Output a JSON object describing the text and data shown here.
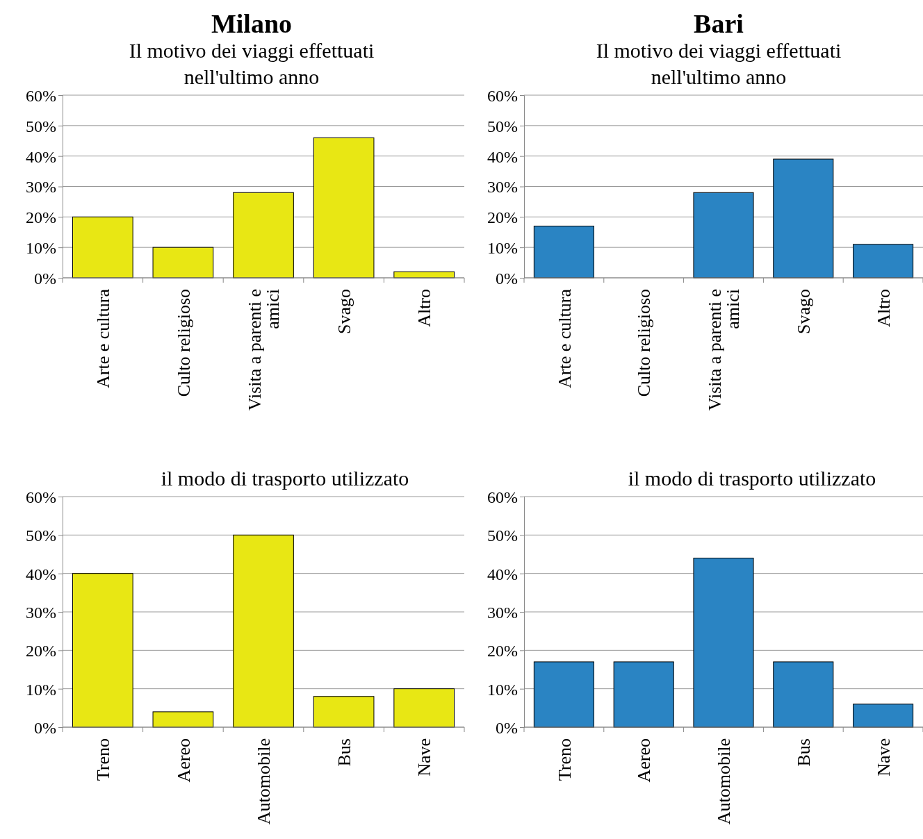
{
  "chart_data": [
    {
      "type": "bar",
      "title": "Milano",
      "subtitle": "Il motivo dei viaggi effettuati nell'ultimo anno",
      "categories": [
        "Arte e cultura",
        "Culto religioso",
        "Visita a parenti e amici",
        "Svago",
        "Altro"
      ],
      "values": [
        20,
        10,
        28,
        46,
        2
      ],
      "color": "#e8e714",
      "ylim": [
        0,
        60
      ],
      "yticks": [
        {
          "value": 0,
          "label": "0%"
        },
        {
          "value": 10,
          "label": "10%"
        },
        {
          "value": 20,
          "label": "20%"
        },
        {
          "value": 30,
          "label": "30%"
        },
        {
          "value": 40,
          "label": "40%"
        },
        {
          "value": 50,
          "label": "50%"
        },
        {
          "value": 60,
          "label": "60%"
        }
      ],
      "grid": "y"
    },
    {
      "type": "bar",
      "title": "Bari",
      "subtitle": "Il motivo dei viaggi effettuati nell'ultimo anno",
      "categories": [
        "Arte e cultura",
        "Culto religioso",
        "Visita a parenti e amici",
        "Svago",
        "Altro"
      ],
      "values": [
        17,
        0,
        28,
        39,
        11
      ],
      "color": "#2a84c3",
      "ylim": [
        0,
        60
      ],
      "yticks": [
        {
          "value": 0,
          "label": "0%"
        },
        {
          "value": 10,
          "label": "10%"
        },
        {
          "value": 20,
          "label": "20%"
        },
        {
          "value": 30,
          "label": "30%"
        },
        {
          "value": 40,
          "label": "40%"
        },
        {
          "value": 50,
          "label": "50%"
        },
        {
          "value": 60,
          "label": "60%"
        }
      ],
      "grid": "y"
    },
    {
      "type": "bar",
      "subtitle": "il modo di trasporto utilizzato",
      "categories": [
        "Treno",
        "Aereo",
        "Automobile",
        "Bus",
        "Nave"
      ],
      "values": [
        40,
        4,
        50,
        8,
        10
      ],
      "color": "#e8e714",
      "ylim": [
        0,
        60
      ],
      "yticks": [
        {
          "value": 0,
          "label": "0%"
        },
        {
          "value": 10,
          "label": "10%"
        },
        {
          "value": 20,
          "label": "20%"
        },
        {
          "value": 30,
          "label": "30%"
        },
        {
          "value": 40,
          "label": "40%"
        },
        {
          "value": 50,
          "label": "50%"
        },
        {
          "value": 60,
          "label": "60%"
        }
      ],
      "grid": "y"
    },
    {
      "type": "bar",
      "subtitle": "il modo di trasporto utilizzato",
      "categories": [
        "Treno",
        "Aereo",
        "Automobile",
        "Bus",
        "Nave"
      ],
      "values": [
        17,
        17,
        44,
        17,
        6
      ],
      "color": "#2a84c3",
      "ylim": [
        0,
        60
      ],
      "yticks": [
        {
          "value": 0,
          "label": "0%"
        },
        {
          "value": 10,
          "label": "10%"
        },
        {
          "value": 20,
          "label": "20%"
        },
        {
          "value": 30,
          "label": "30%"
        },
        {
          "value": 40,
          "label": "40%"
        },
        {
          "value": 50,
          "label": "50%"
        },
        {
          "value": 60,
          "label": "60%"
        }
      ],
      "grid": "y"
    }
  ]
}
